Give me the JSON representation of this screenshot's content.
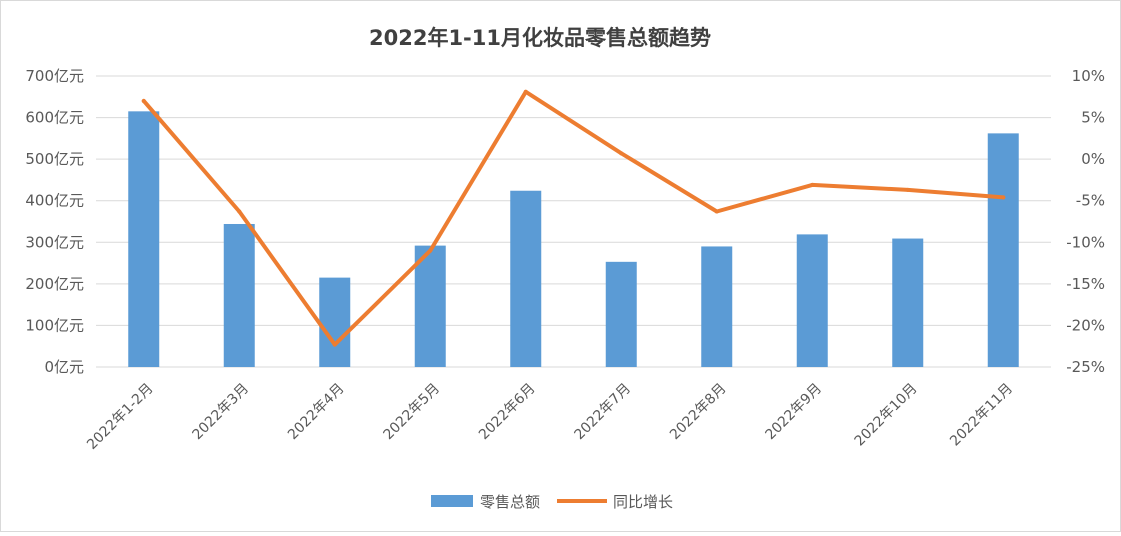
{
  "chart_data": {
    "type": "bar",
    "title": "2022年1-11月化妆品零售总额趋势",
    "categories": [
      "2022年1-2月",
      "2022年3月",
      "2022年4月",
      "2022年5月",
      "2022年6月",
      "2022年7月",
      "2022年8月",
      "2022年9月",
      "2022年10月",
      "2022年11月"
    ],
    "series": [
      {
        "name": "零售总额",
        "type": "bar",
        "axis": "left",
        "color": "#5b9bd5",
        "values": [
          615,
          344,
          215,
          292,
          424,
          253,
          290,
          319,
          309,
          562
        ]
      },
      {
        "name": "同比增长",
        "type": "line",
        "axis": "right",
        "color": "#ed7d31",
        "values": [
          7.0,
          -6.3,
          -22.3,
          -11.0,
          8.1,
          0.7,
          -6.3,
          -3.1,
          -3.7,
          -4.6
        ]
      }
    ],
    "y_left": {
      "ylim": [
        0,
        700
      ],
      "ticks": [
        0,
        100,
        200,
        300,
        400,
        500,
        600,
        700
      ],
      "tick_labels": [
        "0亿元",
        "100亿元",
        "200亿元",
        "300亿元",
        "400亿元",
        "500亿元",
        "600亿元",
        "700亿元"
      ]
    },
    "y_right": {
      "ylim": [
        -25,
        10
      ],
      "ticks": [
        -25,
        -20,
        -15,
        -10,
        -5,
        0,
        5,
        10
      ],
      "tick_labels": [
        "-25%",
        "-20%",
        "-15%",
        "-10%",
        "-5%",
        "0%",
        "5%",
        "10%"
      ]
    },
    "grid": true,
    "legend": "bottom"
  }
}
